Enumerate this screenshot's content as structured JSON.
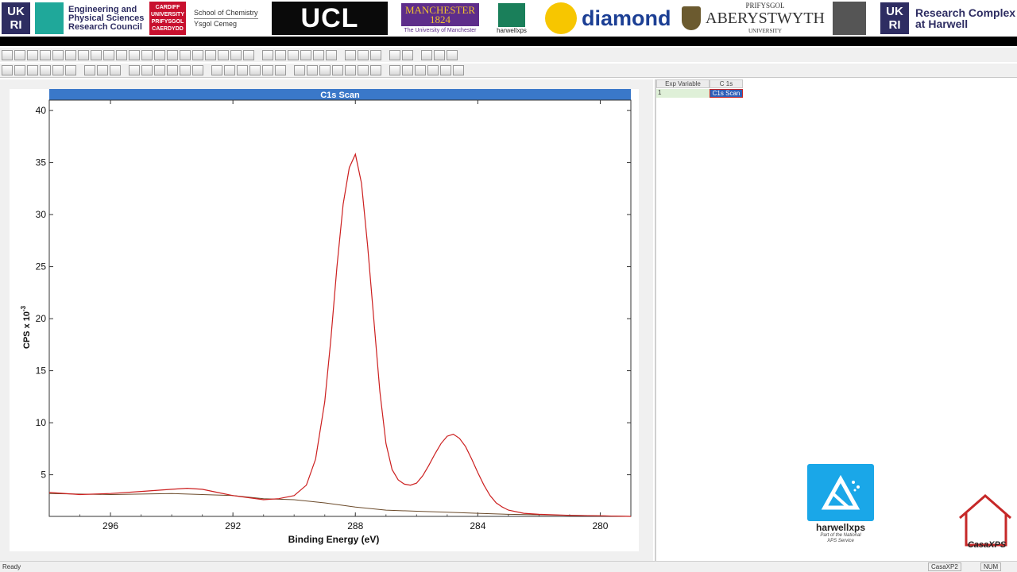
{
  "banner": {
    "epsrc_lines": [
      "Engineering and",
      "Physical Sciences",
      "Research Council"
    ],
    "cardiff_lines": [
      "CARDIFF",
      "UNIVERSITY",
      "PRIFYSGOL",
      "CAERDYDD"
    ],
    "chemistry": [
      "School of Chemistry",
      "Ysgol Cemeg"
    ],
    "ucl": "UCL",
    "manchester": [
      "MANCHESTER",
      "1824"
    ],
    "manchester_sub": "The University of Manchester",
    "harwell_xps": "harwellxps",
    "diamond": "diamond",
    "aberystwyth_top": "PRIFYSGOL",
    "aberystwyth": "ABERYSTWYTH",
    "aberystwyth_bottom": "UNIVERSITY",
    "ukri_letters": [
      "UK",
      "RI"
    ],
    "research_complex": [
      "Research Complex",
      "at Harwell"
    ]
  },
  "grid": {
    "headers": [
      "Exp Variable",
      "C 1s"
    ],
    "row_index": "1",
    "row_value": "C1s Scan"
  },
  "casa_logo": {
    "name": "harwellxps",
    "sub": [
      "Part of the National",
      "XPS Service"
    ]
  },
  "corner_logo": "CasaXPS",
  "status": {
    "left": "Ready",
    "app": "CasaXP2",
    "num": "NUM"
  },
  "colors": {
    "title_bar": "#3a78c9",
    "spectrum": "#cc1f1f",
    "background_line": "#6b4a2a"
  },
  "chart_data": {
    "type": "line",
    "title": "C1s Scan",
    "xlabel": "Binding Energy (eV)",
    "ylabel": "CPS x 10",
    "ylabel_exp": "-3",
    "xlim": [
      298.0,
      279.0
    ],
    "ylim": [
      1.0,
      41.0
    ],
    "x_reversed": true,
    "xticks": [
      296,
      292,
      288,
      284,
      280
    ],
    "yticks": [
      5,
      10,
      15,
      20,
      25,
      30,
      35,
      40
    ],
    "series": [
      {
        "type": "spectrum",
        "x": [
          298.0,
          297.0,
          296.0,
          295.0,
          294.0,
          293.5,
          293.0,
          292.5,
          292.0,
          291.5,
          291.0,
          290.5,
          290.0,
          289.6,
          289.3,
          289.0,
          288.8,
          288.6,
          288.4,
          288.2,
          288.0,
          287.8,
          287.6,
          287.4,
          287.2,
          287.0,
          286.8,
          286.6,
          286.4,
          286.2,
          286.0,
          285.8,
          285.6,
          285.4,
          285.2,
          285.0,
          284.8,
          284.6,
          284.4,
          284.2,
          284.0,
          283.8,
          283.6,
          283.4,
          283.2,
          283.0,
          282.5,
          282.0,
          281.0,
          280.0,
          279.0
        ],
        "y": [
          3.3,
          3.1,
          3.2,
          3.4,
          3.6,
          3.7,
          3.6,
          3.3,
          3.0,
          2.8,
          2.6,
          2.7,
          3.0,
          4.0,
          6.5,
          12.0,
          18.0,
          25.0,
          31.0,
          34.5,
          35.8,
          33.0,
          27.0,
          20.0,
          13.0,
          8.0,
          5.5,
          4.5,
          4.1,
          4.0,
          4.2,
          4.9,
          5.9,
          7.0,
          8.0,
          8.7,
          8.9,
          8.5,
          7.7,
          6.5,
          5.2,
          4.0,
          3.0,
          2.3,
          1.9,
          1.6,
          1.3,
          1.2,
          1.1,
          1.05,
          1.0
        ]
      },
      {
        "type": "background",
        "x": [
          298.0,
          296.0,
          294.0,
          292.0,
          291.0,
          290.0,
          289.0,
          288.0,
          287.0,
          286.0,
          285.0,
          284.0,
          283.0,
          282.0,
          281.0,
          280.0,
          279.0
        ],
        "y": [
          3.2,
          3.1,
          3.2,
          3.0,
          2.7,
          2.6,
          2.3,
          1.9,
          1.6,
          1.5,
          1.4,
          1.3,
          1.2,
          1.15,
          1.1,
          1.05,
          1.0
        ]
      }
    ]
  }
}
